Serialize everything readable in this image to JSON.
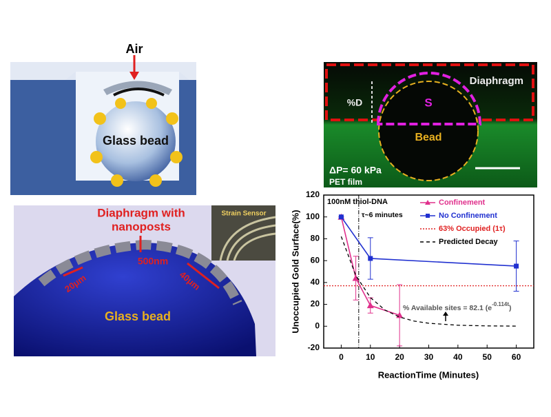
{
  "figure": {
    "air_panel": {
      "air": "Air",
      "bead": "Glass bead"
    },
    "diaphragm_panel": {
      "title_lines": [
        "Diaphragm with",
        "nanoposts"
      ],
      "gap": "500nm",
      "left_spacing": "20μm",
      "right_spacing": "40μm",
      "bead": "Glass bead",
      "inset": "Strain Sensor"
    },
    "micrograph": {
      "diaphragm": "Diaphragm",
      "depth": "%D",
      "area": "S",
      "bead": "Bead",
      "pressure": "ΔP= 60 kPa",
      "substrate": "PET film"
    }
  },
  "chart_data": {
    "type": "line",
    "x_label": "ReactionTime (Minutes)",
    "y_label": "Unoccupied Gold Surface(%)",
    "annotation": "100nM thiol-DNA",
    "fit_label": {
      "base": "% Available sites = 82.1 (e",
      "exponent": "-0.114t",
      "close": ")"
    },
    "xlim": [
      -6,
      66
    ],
    "xticks": [
      0,
      10,
      20,
      30,
      40,
      50,
      60
    ],
    "ylim": [
      -20,
      120
    ],
    "yticks": [
      -20,
      0,
      20,
      40,
      60,
      80,
      100,
      120
    ],
    "legend": "upper right",
    "series": [
      {
        "name": "Confinement",
        "color": "#e0308c",
        "marker": "triangle",
        "x": [
          0,
          5,
          10,
          20
        ],
        "values": [
          100,
          44,
          19,
          10
        ],
        "errors": [
          0,
          20,
          7,
          28
        ]
      },
      {
        "name": "No Confinement",
        "color": "#2030d0",
        "marker": "square",
        "x": [
          0,
          10,
          60
        ],
        "values": [
          100,
          62,
          55
        ],
        "errors": [
          0,
          19,
          23
        ]
      },
      {
        "name": "Predicted Decay",
        "color": "#000000",
        "dash": "5 4",
        "x": [
          0,
          5,
          10,
          15,
          20,
          25,
          30,
          40,
          50,
          60
        ],
        "values": [
          82.1,
          46.4,
          26.2,
          14.8,
          8.4,
          4.7,
          2.7,
          0.9,
          0.3,
          0.1
        ]
      }
    ],
    "hlines": [
      {
        "name": "63% Occupied (1τ)",
        "value": 37,
        "color": "#e02020"
      }
    ],
    "vlines": [
      {
        "label": "τ~6 minutes",
        "value": 6,
        "color": "#000000"
      }
    ]
  }
}
